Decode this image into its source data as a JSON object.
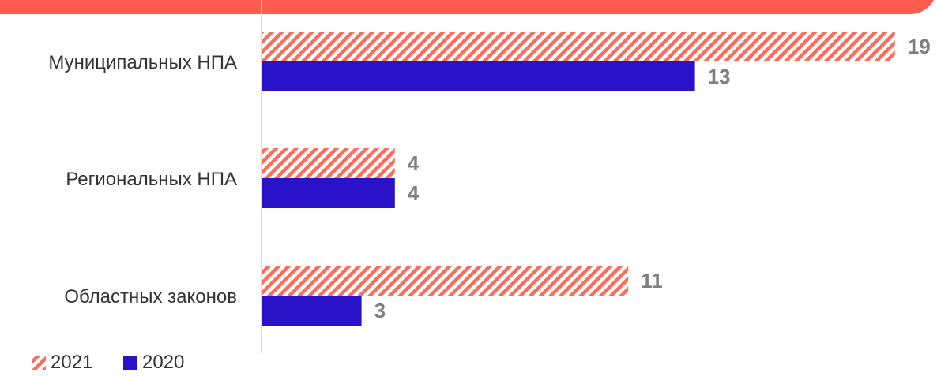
{
  "colors": {
    "header": "#fe5d4d",
    "series_2021": "#f86d5c",
    "series_2021_bg": "#ffffff",
    "series_2020": "#2a12c9",
    "axis": "#d4d4d4"
  },
  "chart_data": {
    "type": "bar",
    "orientation": "horizontal",
    "categories": [
      "Муниципальных НПА",
      "Региональных НПА",
      "Областных законов"
    ],
    "series": [
      {
        "name": "2021",
        "values": [
          19,
          4,
          11
        ],
        "pattern": "diagonal-stripes"
      },
      {
        "name": "2020",
        "values": [
          13,
          4,
          3
        ],
        "pattern": "solid"
      }
    ],
    "xlim": [
      0,
      20
    ],
    "grid": false,
    "legend_position": "bottom-left",
    "data_labels": true
  }
}
